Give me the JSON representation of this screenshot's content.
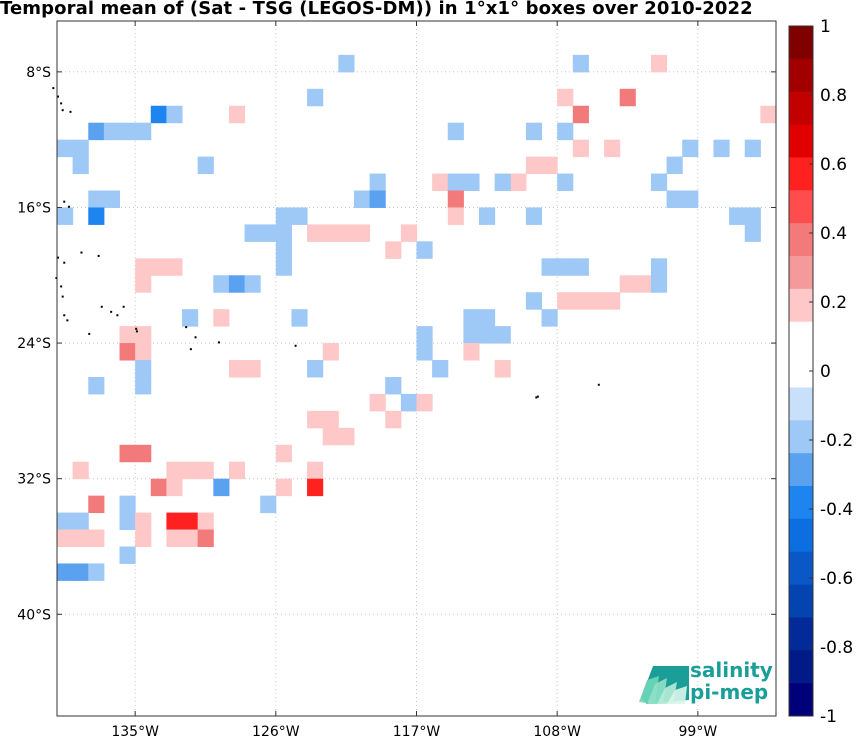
{
  "title": "Temporal mean of (Sat - TSG (LEGOS-DM)) in 1°x1° boxes over 2010-2022",
  "map": {
    "lon_range": [
      -140.0,
      -94.0
    ],
    "lat_range": [
      -46.0,
      -5.0
    ],
    "x_ticks": [
      {
        "lon": -135,
        "label": "135°W"
      },
      {
        "lon": -126,
        "label": "126°W"
      },
      {
        "lon": -117,
        "label": "117°W"
      },
      {
        "lon": -108,
        "label": "108°W"
      },
      {
        "lon": -99,
        "label": "99°W"
      }
    ],
    "y_ticks": [
      {
        "lat": -8,
        "label": "8°S"
      },
      {
        "lat": -16,
        "label": "16°S"
      },
      {
        "lat": -24,
        "label": "24°S"
      },
      {
        "lat": -32,
        "label": "32°S"
      },
      {
        "lat": -40,
        "label": "40°S"
      }
    ],
    "grid": true,
    "cells": [
      [
        -122,
        -7,
        -0.1
      ],
      [
        -107,
        -7,
        -0.1
      ],
      [
        -102,
        -7,
        0.1
      ],
      [
        -134,
        -10,
        -0.3
      ],
      [
        -133,
        -10,
        -0.1
      ],
      [
        -129,
        -10,
        0.1
      ],
      [
        -124,
        -9,
        -0.1
      ],
      [
        -108,
        -9,
        0.1
      ],
      [
        -107,
        -10,
        0.3
      ],
      [
        -104,
        -9,
        0.3
      ],
      [
        -95,
        -10,
        0.1
      ],
      [
        -138,
        -11,
        -0.2
      ],
      [
        -137,
        -11,
        -0.1
      ],
      [
        -136,
        -11,
        -0.1
      ],
      [
        -135,
        -11,
        -0.1
      ],
      [
        -115,
        -11,
        -0.1
      ],
      [
        -110,
        -11,
        -0.1
      ],
      [
        -108,
        -11,
        -0.1
      ],
      [
        -107,
        -12,
        0.1
      ],
      [
        -105,
        -12,
        0.1
      ],
      [
        -140,
        -12,
        -0.1
      ],
      [
        -139,
        -12,
        -0.1
      ],
      [
        -100,
        -12,
        -0.1
      ],
      [
        -98,
        -12,
        -0.1
      ],
      [
        -96,
        -12,
        -0.1
      ],
      [
        -139,
        -13,
        -0.1
      ],
      [
        -131,
        -13,
        -0.1
      ],
      [
        -110,
        -13,
        0.1
      ],
      [
        -109,
        -13,
        0.1
      ],
      [
        -101,
        -13,
        -0.1
      ],
      [
        -111,
        -14,
        0.1
      ],
      [
        -108,
        -14,
        -0.1
      ],
      [
        -102,
        -14,
        -0.1
      ],
      [
        -101,
        -15,
        -0.1
      ],
      [
        -120,
        -14,
        -0.1
      ],
      [
        -116,
        -14,
        0.1
      ],
      [
        -115,
        -14,
        -0.1
      ],
      [
        -114,
        -14,
        -0.1
      ],
      [
        -112,
        -14,
        -0.1
      ],
      [
        -138,
        -15,
        -0.1
      ],
      [
        -137,
        -15,
        -0.1
      ],
      [
        -121,
        -15,
        -0.1
      ],
      [
        -120,
        -15,
        -0.2
      ],
      [
        -115,
        -15,
        0.3
      ],
      [
        -100,
        -15,
        -0.1
      ],
      [
        -140,
        -16,
        -0.1
      ],
      [
        -138,
        -16,
        -0.3
      ],
      [
        -126,
        -16,
        -0.1
      ],
      [
        -125,
        -16,
        -0.1
      ],
      [
        -115,
        -16,
        0.1
      ],
      [
        -113,
        -16,
        -0.1
      ],
      [
        -110,
        -16,
        -0.1
      ],
      [
        -97,
        -16,
        -0.1
      ],
      [
        -96,
        -16,
        -0.1
      ],
      [
        -128,
        -17,
        -0.1
      ],
      [
        -127,
        -17,
        -0.1
      ],
      [
        -126,
        -17,
        -0.1
      ],
      [
        -124,
        -17,
        0.1
      ],
      [
        -123,
        -17,
        0.1
      ],
      [
        -122,
        -17,
        0.1
      ],
      [
        -121,
        -17,
        0.1
      ],
      [
        -118,
        -17,
        0.1
      ],
      [
        -96,
        -17,
        -0.1
      ],
      [
        -126,
        -18,
        -0.1
      ],
      [
        -119,
        -18,
        0.1
      ],
      [
        -117,
        -18,
        -0.1
      ],
      [
        -135,
        -19,
        0.1
      ],
      [
        -134,
        -19,
        0.1
      ],
      [
        -133,
        -19,
        0.1
      ],
      [
        -126,
        -19,
        -0.1
      ],
      [
        -109,
        -19,
        -0.1
      ],
      [
        -108,
        -19,
        -0.1
      ],
      [
        -107,
        -19,
        -0.1
      ],
      [
        -102,
        -19,
        -0.1
      ],
      [
        -135,
        -20,
        0.1
      ],
      [
        -130,
        -20,
        -0.1
      ],
      [
        -129,
        -20,
        -0.2
      ],
      [
        -128,
        -20,
        -0.1
      ],
      [
        -104,
        -20,
        0.1
      ],
      [
        -103,
        -20,
        0.1
      ],
      [
        -102,
        -20,
        -0.1
      ],
      [
        -110,
        -21,
        -0.1
      ],
      [
        -108,
        -21,
        0.1
      ],
      [
        -107,
        -21,
        0.1
      ],
      [
        -106,
        -21,
        0.1
      ],
      [
        -105,
        -21,
        0.1
      ],
      [
        -132,
        -22,
        -0.1
      ],
      [
        -125,
        -22,
        -0.1
      ],
      [
        -114,
        -22,
        -0.1
      ],
      [
        -113,
        -22,
        -0.1
      ],
      [
        -109,
        -22,
        -0.1
      ],
      [
        -130,
        -22,
        0.1
      ],
      [
        -136,
        -23,
        0.1
      ],
      [
        -135,
        -23,
        0.1
      ],
      [
        -117,
        -23,
        -0.1
      ],
      [
        -114,
        -23,
        -0.1
      ],
      [
        -113,
        -23,
        -0.1
      ],
      [
        -112,
        -23,
        -0.1
      ],
      [
        -136,
        -24,
        0.3
      ],
      [
        -135,
        -24,
        0.1
      ],
      [
        -123,
        -24,
        0.1
      ],
      [
        -117,
        -24,
        -0.1
      ],
      [
        -114,
        -24,
        0.1
      ],
      [
        -135,
        -25,
        -0.1
      ],
      [
        -129,
        -25,
        0.1
      ],
      [
        -128,
        -25,
        0.1
      ],
      [
        -124,
        -25,
        -0.1
      ],
      [
        -116,
        -25,
        -0.1
      ],
      [
        -112,
        -25,
        0.1
      ],
      [
        -138,
        -26,
        -0.1
      ],
      [
        -135,
        -26,
        -0.1
      ],
      [
        -119,
        -26,
        -0.1
      ],
      [
        -120,
        -27,
        0.1
      ],
      [
        -118,
        -27,
        -0.1
      ],
      [
        -117,
        -27,
        0.1
      ],
      [
        -124,
        -28,
        0.1
      ],
      [
        -123,
        -28,
        0.1
      ],
      [
        -119,
        -28,
        0.1
      ],
      [
        -123,
        -29,
        0.1
      ],
      [
        -122,
        -29,
        0.1
      ],
      [
        -136,
        -30,
        0.3
      ],
      [
        -135,
        -30,
        0.3
      ],
      [
        -126,
        -30,
        0.1
      ],
      [
        -139,
        -31,
        0.1
      ],
      [
        -133,
        -31,
        0.1
      ],
      [
        -132,
        -31,
        0.1
      ],
      [
        -131,
        -31,
        0.1
      ],
      [
        -129,
        -31,
        0.1
      ],
      [
        -124,
        -31,
        0.1
      ],
      [
        -134,
        -32,
        0.3
      ],
      [
        -133,
        -32,
        0.1
      ],
      [
        -130,
        -32,
        -0.2
      ],
      [
        -126,
        -32,
        0.1
      ],
      [
        -124,
        -32,
        0.5
      ],
      [
        -138,
        -33,
        0.3
      ],
      [
        -136,
        -33,
        -0.1
      ],
      [
        -127,
        -33,
        -0.1
      ],
      [
        -140,
        -34,
        -0.1
      ],
      [
        -139,
        -34,
        -0.1
      ],
      [
        -136,
        -34,
        -0.1
      ],
      [
        -135,
        -34,
        0.1
      ],
      [
        -133,
        -34,
        0.5
      ],
      [
        -132,
        -34,
        0.5
      ],
      [
        -131,
        -34,
        0.1
      ],
      [
        -140,
        -35,
        0.1
      ],
      [
        -139,
        -35,
        0.1
      ],
      [
        -138,
        -35,
        0.1
      ],
      [
        -135,
        -35,
        0.1
      ],
      [
        -133,
        -35,
        0.1
      ],
      [
        -132,
        -35,
        0.1
      ],
      [
        -131,
        -35,
        0.3
      ],
      [
        -136,
        -36,
        -0.1
      ],
      [
        -140,
        -37,
        -0.2
      ],
      [
        -139,
        -37,
        -0.2
      ],
      [
        -138,
        -37,
        -0.1
      ]
    ],
    "islands": [
      [
        -140.3,
        -8.9
      ],
      [
        -140.0,
        -9.4
      ],
      [
        -139.8,
        -9.8
      ],
      [
        -139.7,
        -10.2
      ],
      [
        -139.2,
        -10.3
      ],
      [
        -139.6,
        -15.6
      ],
      [
        -139.3,
        -15.9
      ],
      [
        -140.0,
        -18.9
      ],
      [
        -139.6,
        -19.2
      ],
      [
        -138.5,
        -18.6
      ],
      [
        -137.4,
        -18.8
      ],
      [
        -140.1,
        -20.1
      ],
      [
        -139.8,
        -20.6
      ],
      [
        -139.7,
        -21.2
      ],
      [
        -139.6,
        -22.3
      ],
      [
        -139.4,
        -22.6
      ],
      [
        -137.2,
        -21.8
      ],
      [
        -136.6,
        -22.1
      ],
      [
        -136.2,
        -22.3
      ],
      [
        -135.8,
        -21.8
      ],
      [
        -138.0,
        -23.4
      ],
      [
        -135.0,
        -23.1
      ],
      [
        -134.95,
        -23.25
      ],
      [
        -131.8,
        -23.0
      ],
      [
        -131.2,
        -23.6
      ],
      [
        -129.7,
        -23.9
      ],
      [
        -131.5,
        -24.3
      ],
      [
        -124.8,
        -24.1
      ],
      [
        -109.3,
        -27.1
      ],
      [
        -109.4,
        -27.15
      ],
      [
        -105.4,
        -26.4
      ]
    ]
  },
  "colorbar": {
    "tick_labels": [
      "1",
      "0.8",
      "0.6",
      "0.4",
      "0.2",
      "0",
      "-0.2",
      "-0.4",
      "-0.6",
      "-0.8",
      "-1"
    ],
    "colors_top_to_bottom": [
      "#800000",
      "#a20000",
      "#c20000",
      "#e00000",
      "#ff2020",
      "#ff4d4d",
      "#f27a7a",
      "#f59a9a",
      "#ffc8c8",
      "#ffffff",
      "#ffffff",
      "#c8e0fa",
      "#9ec8f5",
      "#5aa2f0",
      "#1e84f0",
      "#0c6ee0",
      "#0a58c8",
      "#0444b0",
      "#022a98",
      "#011a88",
      "#00007a"
    ]
  },
  "logo": {
    "line1": "salinity",
    "line2": "pi-mep"
  }
}
